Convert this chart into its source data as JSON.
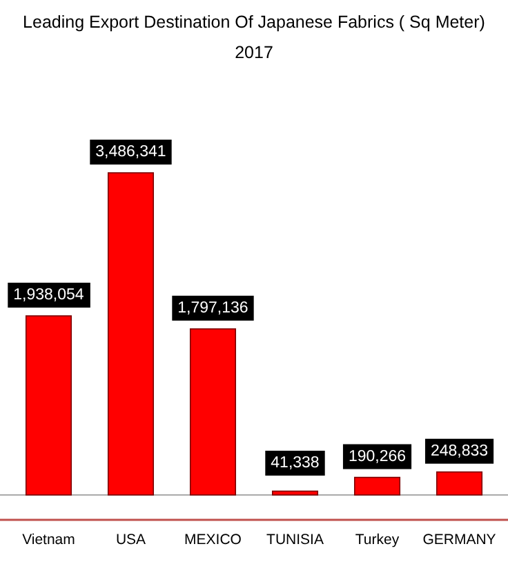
{
  "chart_data": {
    "type": "bar",
    "title": "Leading Export Destination Of Japanese Fabrics ( Sq Meter)",
    "subtitle": "2017",
    "categories": [
      "Vietnam",
      "USA",
      "MEXICO",
      "TUNISIA",
      "Turkey",
      "GERMANY"
    ],
    "values": [
      1938054,
      3486341,
      1797136,
      41338,
      190266,
      248833
    ],
    "color": "#ff0000",
    "value_labels": [
      "1,938,054",
      "3,486,341",
      "1,797,136",
      "41,338",
      "190,266",
      "248,833"
    ]
  }
}
